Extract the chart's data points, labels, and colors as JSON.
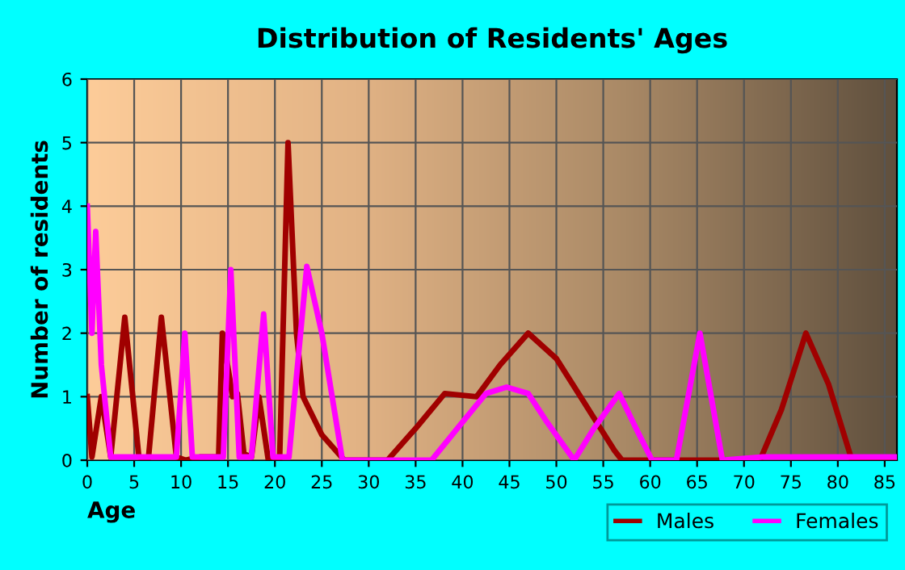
{
  "chart_data": {
    "type": "line",
    "title": "Distribution of Residents' Ages",
    "xlabel": "Age",
    "ylabel": "Number of residents",
    "xlim": [
      0,
      86.3
    ],
    "ylim": [
      0,
      6
    ],
    "xticks": [
      0,
      5,
      10,
      15,
      20,
      25,
      30,
      35,
      40,
      45,
      50,
      55,
      60,
      65,
      70,
      75,
      80,
      85
    ],
    "yticks": [
      0,
      1,
      2,
      3,
      4,
      5,
      6
    ],
    "grid": true,
    "legend": "bottom right",
    "marker": "none",
    "line_style": "solid",
    "series": [
      {
        "name": "Males",
        "color": "#a00000",
        "x": [
          0,
          0.5,
          1.5,
          2.5,
          4,
          5.5,
          6.5,
          7.9,
          9.5,
          10.5,
          12,
          14,
          14.4,
          15.5,
          16,
          16.7,
          17.5,
          18.3,
          19.3,
          20.5,
          21.4,
          22.3,
          23,
          25,
          27.4,
          32,
          35,
          38.1,
          41.5,
          44,
          47,
          50,
          53,
          56.2,
          57,
          65,
          71.7,
          74,
          76.6,
          79,
          81.5,
          86.3
        ],
        "values": [
          1.0,
          0.05,
          1.0,
          0.05,
          2.25,
          0.05,
          0,
          2.25,
          0.05,
          0,
          0.05,
          0.05,
          2.0,
          1.0,
          1.05,
          0.1,
          0.05,
          1.0,
          0,
          0,
          5.0,
          2.0,
          1.0,
          0.4,
          0,
          0,
          0.5,
          1.05,
          1.0,
          1.5,
          2.0,
          1.6,
          0.9,
          0.15,
          0,
          0,
          0,
          0.8,
          2.0,
          1.2,
          0,
          0
        ]
      },
      {
        "name": "Females",
        "color": "#ff00ff",
        "x": [
          0,
          0.5,
          0.9,
          1.5,
          2.5,
          9.5,
          10.4,
          11.2,
          14.5,
          15.3,
          16.2,
          17.5,
          18.8,
          19.8,
          21.5,
          23.4,
          25,
          27.2,
          36.7,
          40,
          42.5,
          44.7,
          47,
          49,
          51.9,
          54,
          56.7,
          58.5,
          60.2,
          62.8,
          65.3,
          67.7,
          72,
          86.3
        ],
        "values": [
          4.0,
          2.0,
          3.6,
          1.5,
          0.05,
          0.05,
          2.0,
          0.05,
          0.05,
          3.0,
          0.05,
          0.05,
          2.3,
          0.05,
          0.05,
          3.05,
          2.0,
          0,
          0,
          0.6,
          1.05,
          1.15,
          1.05,
          0.6,
          0,
          0.5,
          1.05,
          0.5,
          0,
          0,
          2.0,
          0,
          0.05,
          0.05
        ]
      }
    ]
  }
}
